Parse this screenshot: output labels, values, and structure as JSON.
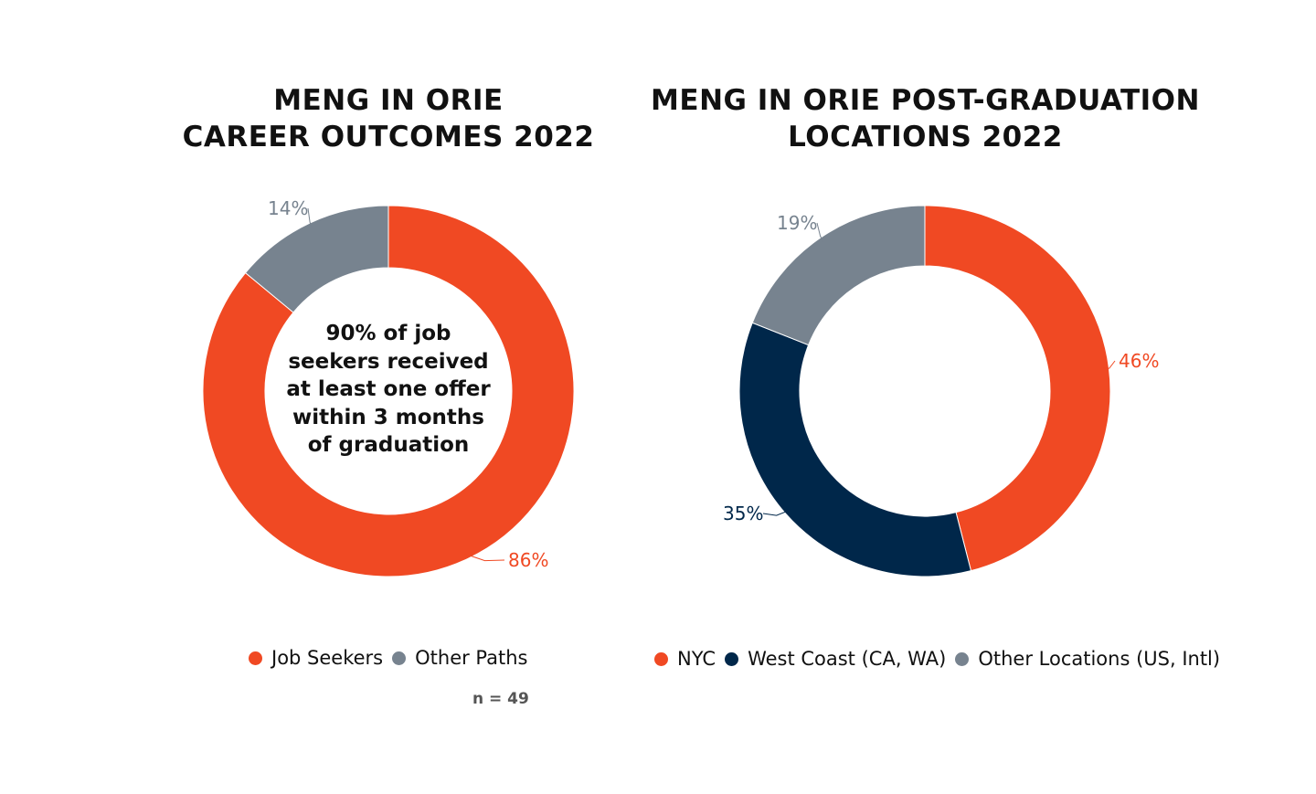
{
  "chart_data": [
    {
      "type": "pie",
      "donut": true,
      "title": "MENG IN ORIE\nCAREER OUTCOMES 2022",
      "center_text": "90% of job\nseekers received\nat least one offer\nwithin 3 months\nof graduation",
      "categories": [
        "Job Seekers",
        "Other Paths"
      ],
      "values": [
        86,
        14
      ],
      "data_labels": [
        "86%",
        "14%"
      ],
      "colors": [
        "#F04923",
        "#77838F"
      ],
      "legend_position": "bottom",
      "note": "n = 49"
    },
    {
      "type": "pie",
      "donut": true,
      "title": "MENG IN ORIE POST-GRADUATION\nLOCATIONS 2022",
      "categories": [
        "NYC",
        "West Coast (CA, WA)",
        "Other Locations (US, Intl)"
      ],
      "values": [
        46,
        35,
        19
      ],
      "data_labels": [
        "46%",
        "35%",
        "19%"
      ],
      "colors": [
        "#F04923",
        "#00274A",
        "#77838F"
      ],
      "legend_position": "bottom"
    }
  ]
}
